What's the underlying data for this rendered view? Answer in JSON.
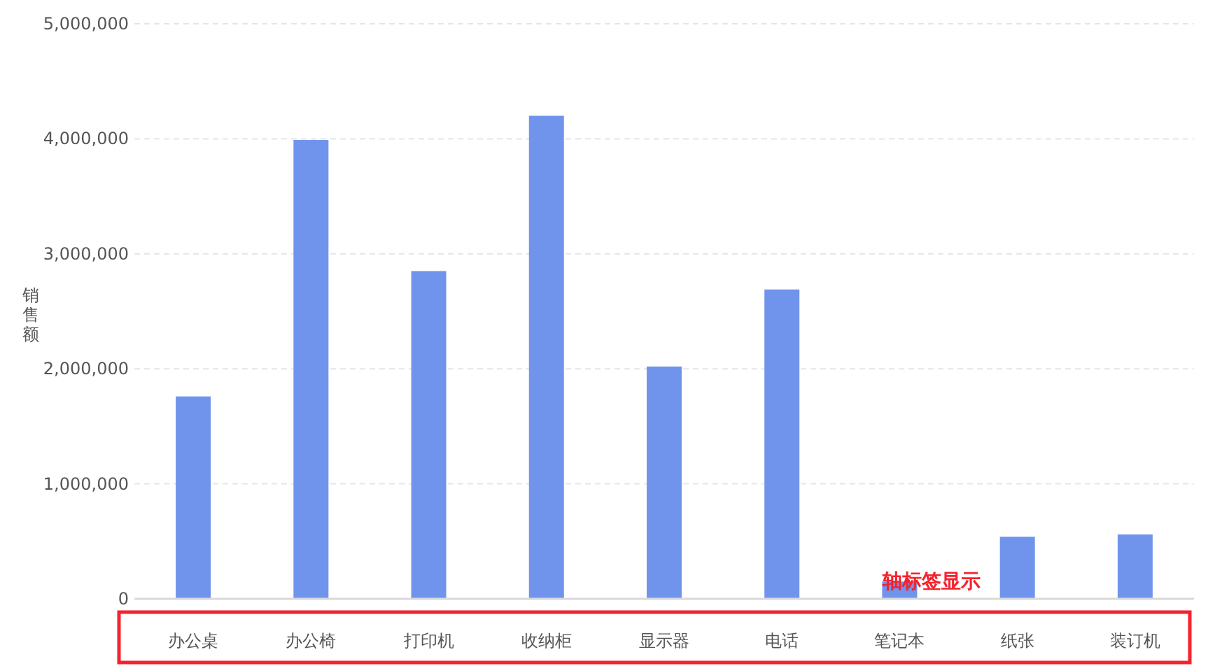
{
  "chart_data": {
    "type": "bar",
    "ylabel": "销售额",
    "categories": [
      "办公桌",
      "办公椅",
      "打印机",
      "收纳柜",
      "显示器",
      "电话",
      "笔记本",
      "纸张",
      "装订机"
    ],
    "values": [
      1760000,
      3990000,
      2850000,
      4200000,
      2020000,
      2690000,
      150000,
      540000,
      560000
    ],
    "color": "#7094ec",
    "ylim": [
      0,
      5000000
    ],
    "yticks": [
      0,
      {
        "value": 1000000,
        "label": "1,000,000"
      },
      {
        "value": 2000000,
        "label": "2,000,000"
      },
      {
        "value": 3000000,
        "label": "3,000,000"
      },
      {
        "value": 4000000,
        "label": "4,000,000"
      },
      {
        "value": 5000000,
        "label": "5,000,000"
      }
    ],
    "grid": "y",
    "annotations": [
      "轴标签显示"
    ]
  }
}
